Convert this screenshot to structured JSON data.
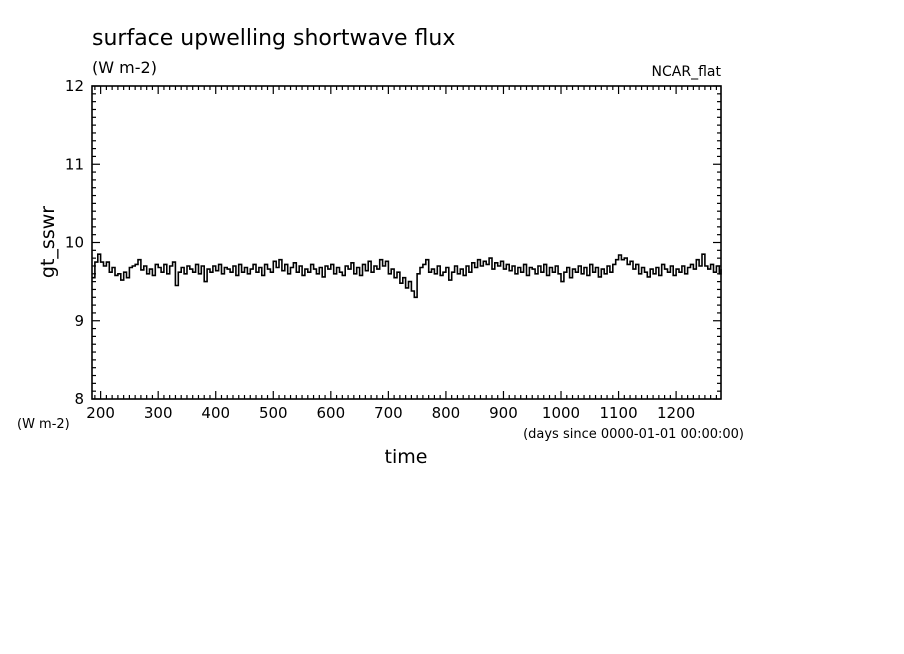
{
  "chart_data": {
    "type": "line",
    "title": "surface upwelling shortwave flux",
    "subtitle": "(W m-2)",
    "corner_label": "NCAR_flat",
    "xlabel": "time",
    "x_units": "(days since 0000-01-01 00:00:00)",
    "ylabel": "gt_sswr",
    "y_units": "(W m-2)",
    "xlim": [
      185,
      1278
    ],
    "ylim": [
      8,
      12
    ],
    "x_ticks": [
      200,
      300,
      400,
      500,
      600,
      700,
      800,
      900,
      1000,
      1100,
      1200
    ],
    "y_ticks": [
      8,
      9,
      10,
      11,
      12
    ],
    "grid": false,
    "series": [
      {
        "values": [
          [
            185,
            9.55
          ],
          [
            190,
            9.75
          ],
          [
            195,
            9.85
          ],
          [
            200,
            9.75
          ],
          [
            205,
            9.7
          ],
          [
            210,
            9.75
          ],
          [
            215,
            9.62
          ],
          [
            220,
            9.68
          ],
          [
            225,
            9.58
          ],
          [
            230,
            9.6
          ],
          [
            235,
            9.52
          ],
          [
            240,
            9.62
          ],
          [
            245,
            9.55
          ],
          [
            250,
            9.68
          ],
          [
            255,
            9.7
          ],
          [
            260,
            9.72
          ],
          [
            265,
            9.78
          ],
          [
            270,
            9.65
          ],
          [
            275,
            9.7
          ],
          [
            280,
            9.6
          ],
          [
            285,
            9.66
          ],
          [
            290,
            9.58
          ],
          [
            295,
            9.72
          ],
          [
            300,
            9.68
          ],
          [
            305,
            9.62
          ],
          [
            310,
            9.72
          ],
          [
            315,
            9.6
          ],
          [
            320,
            9.7
          ],
          [
            325,
            9.75
          ],
          [
            330,
            9.45
          ],
          [
            335,
            9.62
          ],
          [
            340,
            9.68
          ],
          [
            345,
            9.6
          ],
          [
            350,
            9.7
          ],
          [
            355,
            9.66
          ],
          [
            360,
            9.62
          ],
          [
            365,
            9.72
          ],
          [
            370,
            9.6
          ],
          [
            375,
            9.7
          ],
          [
            380,
            9.5
          ],
          [
            385,
            9.66
          ],
          [
            390,
            9.62
          ],
          [
            395,
            9.7
          ],
          [
            400,
            9.64
          ],
          [
            405,
            9.72
          ],
          [
            410,
            9.6
          ],
          [
            415,
            9.68
          ],
          [
            420,
            9.66
          ],
          [
            425,
            9.62
          ],
          [
            430,
            9.7
          ],
          [
            435,
            9.58
          ],
          [
            440,
            9.72
          ],
          [
            445,
            9.62
          ],
          [
            450,
            9.68
          ],
          [
            455,
            9.6
          ],
          [
            460,
            9.66
          ],
          [
            465,
            9.72
          ],
          [
            470,
            9.62
          ],
          [
            475,
            9.68
          ],
          [
            480,
            9.58
          ],
          [
            485,
            9.72
          ],
          [
            490,
            9.66
          ],
          [
            495,
            9.62
          ],
          [
            500,
            9.76
          ],
          [
            505,
            9.68
          ],
          [
            510,
            9.78
          ],
          [
            515,
            9.64
          ],
          [
            520,
            9.72
          ],
          [
            525,
            9.6
          ],
          [
            530,
            9.68
          ],
          [
            535,
            9.74
          ],
          [
            540,
            9.62
          ],
          [
            545,
            9.7
          ],
          [
            550,
            9.58
          ],
          [
            555,
            9.66
          ],
          [
            560,
            9.62
          ],
          [
            565,
            9.72
          ],
          [
            570,
            9.66
          ],
          [
            575,
            9.6
          ],
          [
            580,
            9.68
          ],
          [
            585,
            9.56
          ],
          [
            590,
            9.7
          ],
          [
            595,
            9.66
          ],
          [
            600,
            9.72
          ],
          [
            605,
            9.6
          ],
          [
            610,
            9.68
          ],
          [
            615,
            9.62
          ],
          [
            620,
            9.58
          ],
          [
            625,
            9.7
          ],
          [
            630,
            9.66
          ],
          [
            635,
            9.74
          ],
          [
            640,
            9.6
          ],
          [
            645,
            9.68
          ],
          [
            650,
            9.58
          ],
          [
            655,
            9.72
          ],
          [
            660,
            9.64
          ],
          [
            665,
            9.76
          ],
          [
            670,
            9.62
          ],
          [
            675,
            9.7
          ],
          [
            680,
            9.66
          ],
          [
            685,
            9.78
          ],
          [
            690,
            9.7
          ],
          [
            695,
            9.76
          ],
          [
            700,
            9.6
          ],
          [
            705,
            9.66
          ],
          [
            710,
            9.55
          ],
          [
            715,
            9.62
          ],
          [
            720,
            9.48
          ],
          [
            725,
            9.55
          ],
          [
            730,
            9.42
          ],
          [
            735,
            9.5
          ],
          [
            740,
            9.38
          ],
          [
            745,
            9.3
          ],
          [
            750,
            9.6
          ],
          [
            755,
            9.68
          ],
          [
            760,
            9.72
          ],
          [
            765,
            9.78
          ],
          [
            770,
            9.62
          ],
          [
            775,
            9.66
          ],
          [
            780,
            9.6
          ],
          [
            785,
            9.7
          ],
          [
            790,
            9.58
          ],
          [
            795,
            9.62
          ],
          [
            800,
            9.68
          ],
          [
            805,
            9.52
          ],
          [
            810,
            9.62
          ],
          [
            815,
            9.7
          ],
          [
            820,
            9.6
          ],
          [
            825,
            9.66
          ],
          [
            830,
            9.58
          ],
          [
            835,
            9.7
          ],
          [
            840,
            9.62
          ],
          [
            845,
            9.74
          ],
          [
            850,
            9.68
          ],
          [
            855,
            9.78
          ],
          [
            860,
            9.7
          ],
          [
            865,
            9.76
          ],
          [
            870,
            9.72
          ],
          [
            875,
            9.8
          ],
          [
            880,
            9.66
          ],
          [
            885,
            9.74
          ],
          [
            890,
            9.7
          ],
          [
            895,
            9.76
          ],
          [
            900,
            9.66
          ],
          [
            905,
            9.72
          ],
          [
            910,
            9.64
          ],
          [
            915,
            9.7
          ],
          [
            920,
            9.6
          ],
          [
            925,
            9.68
          ],
          [
            930,
            9.62
          ],
          [
            935,
            9.72
          ],
          [
            940,
            9.58
          ],
          [
            945,
            9.68
          ],
          [
            950,
            9.66
          ],
          [
            955,
            9.6
          ],
          [
            960,
            9.7
          ],
          [
            965,
            9.62
          ],
          [
            970,
            9.72
          ],
          [
            975,
            9.58
          ],
          [
            980,
            9.68
          ],
          [
            985,
            9.62
          ],
          [
            990,
            9.7
          ],
          [
            995,
            9.6
          ],
          [
            1000,
            9.5
          ],
          [
            1005,
            9.62
          ],
          [
            1010,
            9.68
          ],
          [
            1015,
            9.55
          ],
          [
            1020,
            9.66
          ],
          [
            1025,
            9.62
          ],
          [
            1030,
            9.7
          ],
          [
            1035,
            9.6
          ],
          [
            1040,
            9.68
          ],
          [
            1045,
            9.58
          ],
          [
            1050,
            9.72
          ],
          [
            1055,
            9.62
          ],
          [
            1060,
            9.68
          ],
          [
            1065,
            9.56
          ],
          [
            1070,
            9.66
          ],
          [
            1075,
            9.6
          ],
          [
            1080,
            9.7
          ],
          [
            1085,
            9.62
          ],
          [
            1090,
            9.72
          ],
          [
            1095,
            9.78
          ],
          [
            1100,
            9.84
          ],
          [
            1105,
            9.78
          ],
          [
            1110,
            9.8
          ],
          [
            1115,
            9.72
          ],
          [
            1120,
            9.76
          ],
          [
            1125,
            9.66
          ],
          [
            1130,
            9.72
          ],
          [
            1135,
            9.6
          ],
          [
            1140,
            9.68
          ],
          [
            1145,
            9.62
          ],
          [
            1150,
            9.56
          ],
          [
            1155,
            9.66
          ],
          [
            1160,
            9.6
          ],
          [
            1165,
            9.68
          ],
          [
            1170,
            9.58
          ],
          [
            1175,
            9.72
          ],
          [
            1180,
            9.66
          ],
          [
            1185,
            9.62
          ],
          [
            1190,
            9.7
          ],
          [
            1195,
            9.58
          ],
          [
            1200,
            9.66
          ],
          [
            1205,
            9.62
          ],
          [
            1210,
            9.7
          ],
          [
            1215,
            9.6
          ],
          [
            1220,
            9.68
          ],
          [
            1225,
            9.72
          ],
          [
            1230,
            9.66
          ],
          [
            1235,
            9.78
          ],
          [
            1240,
            9.7
          ],
          [
            1245,
            9.85
          ],
          [
            1250,
            9.7
          ],
          [
            1255,
            9.66
          ],
          [
            1260,
            9.72
          ],
          [
            1265,
            9.62
          ],
          [
            1270,
            9.7
          ],
          [
            1275,
            9.6
          ],
          [
            1278,
            9.66
          ]
        ],
        "color": "#000000"
      }
    ]
  }
}
